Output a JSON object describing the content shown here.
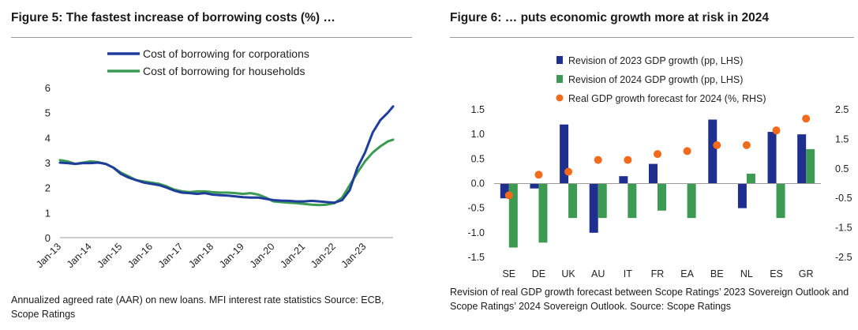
{
  "figure5": {
    "title": "Figure 5: The fastest increase of borrowing costs (%) …",
    "note": "Annualized agreed rate (AAR) on new loans. MFI interest rate statistics Source: ECB, Scope Ratings",
    "chart_data": {
      "type": "line",
      "title": "",
      "xlabel": "",
      "ylabel": "",
      "ylim": [
        0,
        6
      ],
      "yticks": [
        "0",
        "1",
        "2",
        "3",
        "4",
        "5",
        "6"
      ],
      "xticks": [
        "Jan-13",
        "Jan-14",
        "Jan-15",
        "Jan-16",
        "Jan-17",
        "Jan-18",
        "Jan-19",
        "Jan-20",
        "Jan-21",
        "Jan-22",
        "Jan-23"
      ],
      "grid": false,
      "legend": "top",
      "series": [
        {
          "name": "Cost of borrowing for corporations",
          "color": "#1f3d9a",
          "points": [
            [
              2013.0,
              3.0
            ],
            [
              2013.25,
              2.98
            ],
            [
              2013.5,
              2.95
            ],
            [
              2013.75,
              2.98
            ],
            [
              2014.0,
              2.98
            ],
            [
              2014.25,
              3.0
            ],
            [
              2014.5,
              2.95
            ],
            [
              2014.75,
              2.8
            ],
            [
              2015.0,
              2.55
            ],
            [
              2015.25,
              2.4
            ],
            [
              2015.5,
              2.3
            ],
            [
              2015.75,
              2.2
            ],
            [
              2016.0,
              2.15
            ],
            [
              2016.25,
              2.1
            ],
            [
              2016.5,
              2.0
            ],
            [
              2016.75,
              1.88
            ],
            [
              2017.0,
              1.8
            ],
            [
              2017.25,
              1.78
            ],
            [
              2017.5,
              1.75
            ],
            [
              2017.75,
              1.78
            ],
            [
              2018.0,
              1.72
            ],
            [
              2018.25,
              1.7
            ],
            [
              2018.5,
              1.68
            ],
            [
              2018.75,
              1.65
            ],
            [
              2019.0,
              1.62
            ],
            [
              2019.25,
              1.6
            ],
            [
              2019.5,
              1.6
            ],
            [
              2019.75,
              1.55
            ],
            [
              2020.0,
              1.5
            ],
            [
              2020.25,
              1.48
            ],
            [
              2020.5,
              1.47
            ],
            [
              2020.75,
              1.45
            ],
            [
              2021.0,
              1.45
            ],
            [
              2021.25,
              1.47
            ],
            [
              2021.5,
              1.45
            ],
            [
              2021.75,
              1.42
            ],
            [
              2022.0,
              1.4
            ],
            [
              2022.25,
              1.5
            ],
            [
              2022.5,
              1.9
            ],
            [
              2022.75,
              2.8
            ],
            [
              2023.0,
              3.4
            ],
            [
              2023.25,
              4.2
            ],
            [
              2023.5,
              4.7
            ],
            [
              2023.75,
              5.0
            ],
            [
              2023.92,
              5.25
            ]
          ]
        },
        {
          "name": "Cost of borrowing for households",
          "color": "#3c9a52",
          "points": [
            [
              2013.0,
              3.1
            ],
            [
              2013.25,
              3.05
            ],
            [
              2013.5,
              2.95
            ],
            [
              2013.75,
              3.0
            ],
            [
              2014.0,
              3.05
            ],
            [
              2014.25,
              3.02
            ],
            [
              2014.5,
              2.95
            ],
            [
              2014.75,
              2.8
            ],
            [
              2015.0,
              2.6
            ],
            [
              2015.25,
              2.45
            ],
            [
              2015.5,
              2.3
            ],
            [
              2015.75,
              2.25
            ],
            [
              2016.0,
              2.2
            ],
            [
              2016.25,
              2.15
            ],
            [
              2016.5,
              2.05
            ],
            [
              2016.75,
              1.92
            ],
            [
              2017.0,
              1.85
            ],
            [
              2017.25,
              1.82
            ],
            [
              2017.5,
              1.85
            ],
            [
              2017.75,
              1.85
            ],
            [
              2018.0,
              1.82
            ],
            [
              2018.25,
              1.8
            ],
            [
              2018.5,
              1.8
            ],
            [
              2018.75,
              1.78
            ],
            [
              2019.0,
              1.75
            ],
            [
              2019.25,
              1.78
            ],
            [
              2019.5,
              1.72
            ],
            [
              2019.75,
              1.6
            ],
            [
              2020.0,
              1.45
            ],
            [
              2020.25,
              1.42
            ],
            [
              2020.5,
              1.4
            ],
            [
              2020.75,
              1.38
            ],
            [
              2021.0,
              1.35
            ],
            [
              2021.25,
              1.32
            ],
            [
              2021.5,
              1.3
            ],
            [
              2021.75,
              1.32
            ],
            [
              2022.0,
              1.38
            ],
            [
              2022.25,
              1.6
            ],
            [
              2022.5,
              2.1
            ],
            [
              2022.75,
              2.6
            ],
            [
              2023.0,
              3.05
            ],
            [
              2023.25,
              3.4
            ],
            [
              2023.5,
              3.65
            ],
            [
              2023.75,
              3.85
            ],
            [
              2023.92,
              3.92
            ]
          ]
        }
      ]
    }
  },
  "figure6": {
    "title": "Figure 6: … puts economic growth more at risk in 2024",
    "note": "Revision of real GDP growth forecast between Scope Ratings’ 2023 Sovereign Outlook and Scope Ratings’ 2024 Sovereign Outlook. Source: Scope Ratings",
    "chart_data": {
      "type": "bar",
      "title": "",
      "categories": [
        "SE",
        "DE",
        "UK",
        "AU",
        "IT",
        "FR",
        "EA",
        "BE",
        "NL",
        "ES",
        "GR"
      ],
      "ylim": [
        -1.5,
        1.5
      ],
      "yticks": [
        "-1.5",
        "-1.0",
        "-0.5",
        "0.0",
        "0.5",
        "1.0",
        "1.5"
      ],
      "y2lim": [
        -2.5,
        2.5
      ],
      "y2ticks": [
        "-2.5",
        "-1.5",
        "-0.5",
        "0.5",
        "1.5",
        "2.5"
      ],
      "grid": false,
      "legend": "top",
      "series": [
        {
          "name": "Revision of 2023 GDP growth (pp, LHS)",
          "kind": "bar",
          "axis": "left",
          "color": "#1f2f8f",
          "values": [
            -0.3,
            -0.1,
            1.2,
            -1.0,
            0.15,
            0.4,
            0.0,
            1.3,
            -0.5,
            1.05,
            1.0
          ]
        },
        {
          "name": "Revision of 2024 GDP growth (pp, LHS)",
          "kind": "bar",
          "axis": "left",
          "color": "#3c9a52",
          "values": [
            -1.3,
            -1.2,
            -0.7,
            -0.7,
            -0.7,
            -0.55,
            -0.7,
            0.0,
            0.2,
            -0.7,
            0.7
          ]
        },
        {
          "name": "Real GDP growth forecast for 2024 (%, RHS)",
          "kind": "dot",
          "axis": "right",
          "color": "#f26a1b",
          "values": [
            -0.4,
            0.3,
            0.4,
            0.8,
            0.8,
            1.0,
            1.1,
            1.3,
            1.3,
            1.8,
            2.2
          ]
        }
      ]
    }
  }
}
